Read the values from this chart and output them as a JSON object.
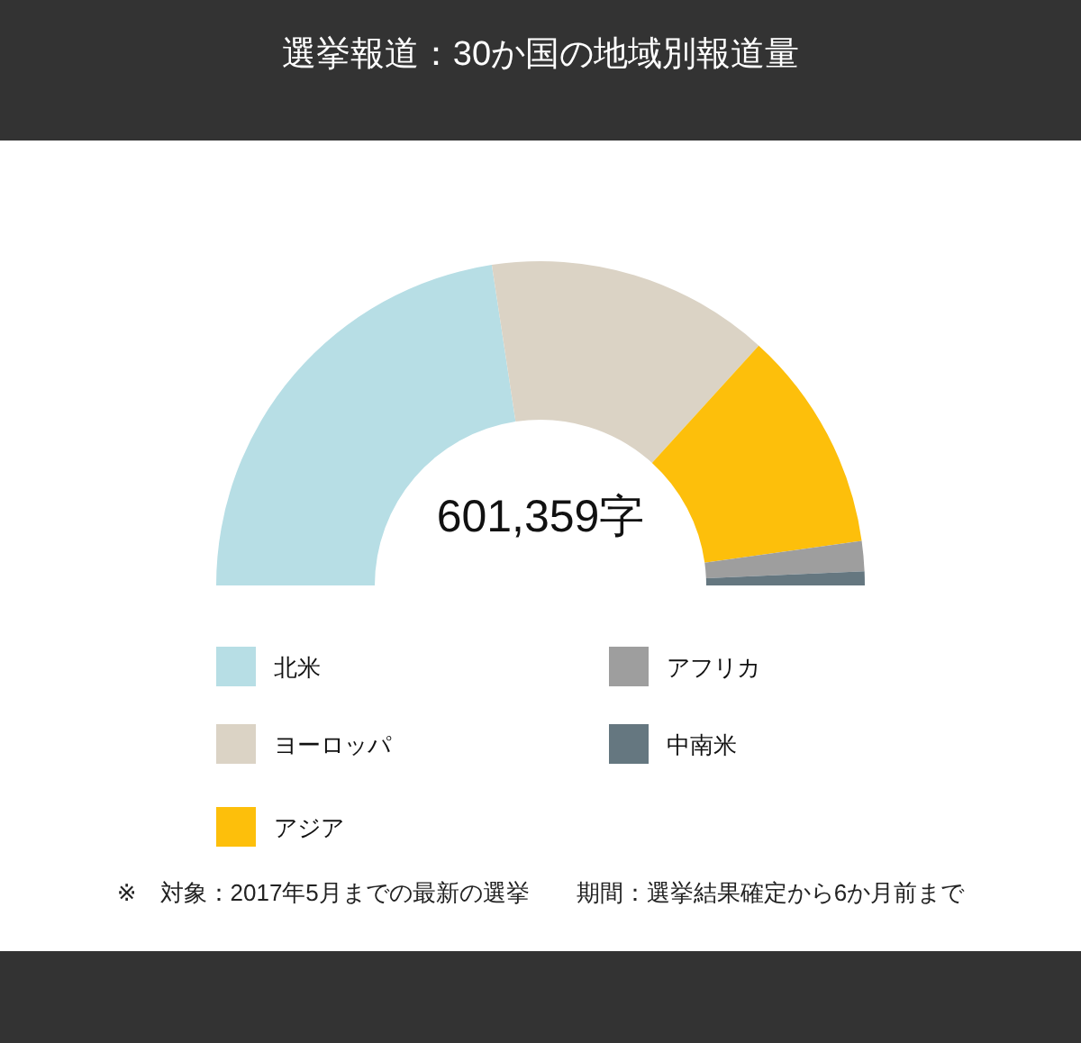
{
  "chart_data": {
    "type": "donut",
    "title": "選挙報道：30か国の地域別報道量",
    "categories": [
      "北米",
      "ヨーロッパ",
      "アジア",
      "アフリカ",
      "中南米"
    ],
    "values": [
      45.2,
      28.3,
      22.1,
      3.0,
      1.4
    ],
    "colors": [
      "#b7dee5",
      "#dbd3c5",
      "#fdbf0b",
      "#9e9e9e",
      "#657780"
    ],
    "legend": "bottom",
    "annotations": [
      "601,359字",
      "※　対象：2017年5月までの最新の選挙　　期間：選挙結果確定から6か月前まで"
    ]
  }
}
